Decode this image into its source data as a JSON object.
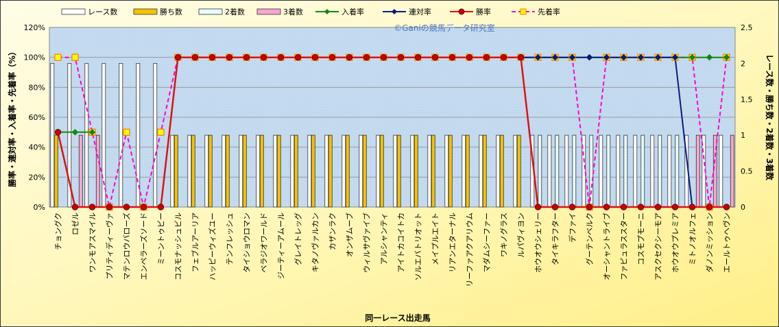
{
  "chart_data": {
    "type": "bar+line",
    "watermark": "©Ganiの競馬データ研究室",
    "xlabel": "同一レース出走馬",
    "ylabel_left": "勝率・連対率・入着率・先着率（%）",
    "ylabel_right": "レース数・勝ち数・2着数・3着数",
    "ylim_left": [
      0,
      120
    ],
    "ylim_right": [
      0,
      2.5
    ],
    "y_ticks_left": [
      "0%",
      "20%",
      "40%",
      "60%",
      "80%",
      "100%",
      "120%"
    ],
    "y_ticks_right": [
      "0",
      "0.5",
      "1",
      "1.5",
      "2",
      "2.5"
    ],
    "categories": [
      "チョングク",
      "ロゼル",
      "ワンモアスマイル",
      "プリティディーヴァ",
      "マテンロウバローズ",
      "エンペラーズソード",
      "ミーントゥビー",
      "コスモナッシュビル",
      "フェブルアーリア",
      "ハッピーウィズユー",
      "テンフレッシュ",
      "タイショウロマン",
      "ベラジオワールド",
      "ジーティーアムール",
      "グレイトレッグ",
      "キタノヴァルカン",
      "カザンラク",
      "オンザムーブ",
      "ウィルサヴァイブ",
      "アルシャンティ",
      "アイトカコイトカ",
      "ソルエバトリオット",
      "メイプルエイト",
      "リアンエターナル",
      "リーファアクアリウム",
      "マダムシーファー",
      "ワキノグラス",
      "ルパヴィヨン",
      "ホウオウシェリー",
      "タイキラフター",
      "デファイ",
      "グーテンベルク",
      "オーシャントライブ",
      "ファピュラススター",
      "コスモプモーニ",
      "アスクセクシーモア",
      "ホウオウプレミア",
      "ミトノオルフェ",
      "ダノンミッション",
      "エールトゥヘヴン"
    ],
    "series": [
      {
        "name": "レース数",
        "kind": "bar",
        "axis": "right",
        "color": "#ffffff",
        "values": [
          2,
          2,
          2,
          2,
          2,
          2,
          2,
          1,
          1,
          1,
          1,
          1,
          1,
          1,
          1,
          1,
          1,
          1,
          1,
          1,
          1,
          1,
          1,
          1,
          1,
          1,
          1,
          1,
          1,
          1,
          1,
          1,
          1,
          1,
          1,
          1,
          1,
          1,
          1,
          1
        ]
      },
      {
        "name": "勝ち数",
        "kind": "bar",
        "axis": "right",
        "color": "#f2c200",
        "values": [
          1,
          0,
          0,
          0,
          0,
          0,
          0,
          1,
          1,
          1,
          1,
          1,
          1,
          1,
          1,
          1,
          1,
          1,
          1,
          1,
          1,
          1,
          1,
          1,
          1,
          1,
          1,
          1,
          0,
          0,
          0,
          0,
          0,
          0,
          0,
          0,
          0,
          0,
          0,
          0
        ]
      },
      {
        "name": "2着数",
        "kind": "bar",
        "axis": "right",
        "color": "#e6fbfb",
        "values": [
          0,
          0,
          0,
          0,
          0,
          0,
          0,
          0,
          0,
          0,
          0,
          0,
          0,
          0,
          0,
          0,
          0,
          0,
          0,
          0,
          0,
          0,
          0,
          0,
          0,
          0,
          0,
          0,
          1,
          1,
          1,
          1,
          1,
          1,
          1,
          1,
          1,
          0,
          0,
          0
        ]
      },
      {
        "name": "3着数",
        "kind": "bar",
        "axis": "right",
        "color": "#f2a8d0",
        "values": [
          0,
          1,
          1,
          0,
          0,
          0,
          0,
          0,
          0,
          0,
          0,
          0,
          0,
          0,
          0,
          0,
          0,
          0,
          0,
          0,
          0,
          0,
          0,
          0,
          0,
          0,
          0,
          0,
          0,
          0,
          0,
          0,
          0,
          0,
          0,
          0,
          0,
          1,
          1,
          1
        ]
      },
      {
        "name": "入着率",
        "kind": "line",
        "axis": "left",
        "color": "#118811",
        "marker": "diamond",
        "values": [
          50,
          50,
          50,
          null,
          null,
          null,
          null,
          100,
          100,
          100,
          100,
          100,
          100,
          100,
          100,
          100,
          100,
          100,
          100,
          100,
          100,
          100,
          100,
          100,
          100,
          100,
          100,
          100,
          100,
          100,
          100,
          100,
          100,
          100,
          100,
          100,
          100,
          100,
          100,
          100
        ]
      },
      {
        "name": "連対率",
        "kind": "line",
        "axis": "left",
        "color": "#0a1a80",
        "marker": "diamond",
        "values": [
          null,
          null,
          null,
          null,
          null,
          null,
          null,
          100,
          100,
          100,
          100,
          100,
          100,
          100,
          100,
          100,
          100,
          100,
          100,
          100,
          100,
          100,
          100,
          100,
          100,
          100,
          100,
          100,
          100,
          100,
          100,
          100,
          100,
          100,
          100,
          100,
          100,
          0,
          0,
          0
        ]
      },
      {
        "name": "勝率",
        "kind": "line",
        "axis": "left",
        "color": "#e01010",
        "marker": "circle",
        "values": [
          50,
          0,
          0,
          0,
          0,
          0,
          0,
          100,
          100,
          100,
          100,
          100,
          100,
          100,
          100,
          100,
          100,
          100,
          100,
          100,
          100,
          100,
          100,
          100,
          100,
          100,
          100,
          100,
          0,
          0,
          0,
          0,
          0,
          0,
          0,
          0,
          0,
          0,
          0,
          0
        ]
      },
      {
        "name": "先着率",
        "kind": "line",
        "axis": "left",
        "color": "#ff00cc",
        "marker": "square",
        "dashed": true,
        "values": [
          100,
          100,
          50,
          0,
          50,
          0,
          50,
          100,
          100,
          100,
          100,
          100,
          100,
          100,
          100,
          100,
          100,
          100,
          100,
          100,
          100,
          100,
          100,
          100,
          100,
          100,
          100,
          100,
          100,
          100,
          100,
          0,
          100,
          100,
          100,
          100,
          100,
          100,
          0,
          100
        ]
      }
    ],
    "legend_position": "top"
  }
}
